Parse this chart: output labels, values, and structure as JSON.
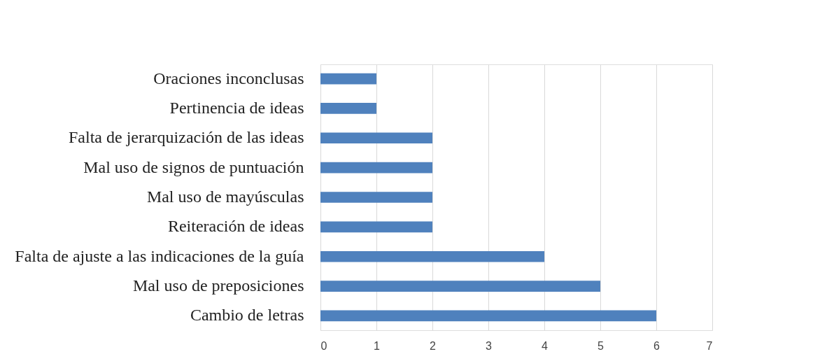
{
  "chart_data": {
    "type": "bar",
    "orientation": "horizontal",
    "categories": [
      "Oraciones inconclusas",
      "Pertinencia de ideas",
      "Falta de jerarquización de las ideas",
      "Mal uso de signos de puntuación",
      "Mal uso de mayúsculas",
      "Reiteración de ideas",
      "Falta de ajuste a las indicaciones de la guía",
      "Mal uso de preposiciones",
      "Cambio de letras"
    ],
    "values": [
      1,
      1,
      2,
      2,
      2,
      2,
      4,
      5,
      6
    ],
    "color": "#4f81bd",
    "xlim": [
      0,
      7
    ],
    "xticks": [
      0,
      1,
      2,
      3,
      4,
      5,
      6,
      7
    ],
    "grid": "x"
  }
}
